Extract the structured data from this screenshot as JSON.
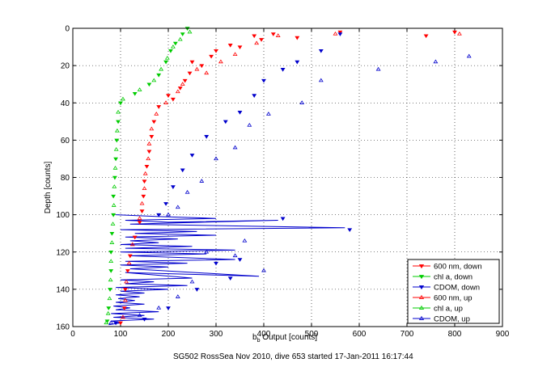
{
  "chart_data": {
    "type": "scatter",
    "title": "",
    "xlabel_main": "b",
    "xlabel_sub": "b",
    "xlabel_rest": " Output [counts]",
    "ylabel": "Depth [counts]",
    "caption": "SG502 RossSea Nov 2010, dive 653 started 17-Jan-2011 16:17:44",
    "xlim": [
      0,
      900
    ],
    "ylim": [
      0,
      160
    ],
    "y_reversed": true,
    "grid": true,
    "grid_style": "dotted",
    "legend_position": "lower-right",
    "xticks": [
      "0",
      "100",
      "200",
      "300",
      "400",
      "500",
      "600",
      "700",
      "800",
      "900"
    ],
    "yticks": [
      "0",
      "20",
      "40",
      "60",
      "80",
      "100",
      "120",
      "140",
      "160"
    ],
    "colors": {
      "red": "#ff0000",
      "green": "#00cc00",
      "blue": "#0000cc"
    },
    "series": [
      {
        "name": "600 nm, down",
        "color": "#ff0000",
        "marker": "triangle-down",
        "filled": true,
        "points": [
          [
            800,
            2
          ],
          [
            740,
            4
          ],
          [
            560,
            2
          ],
          [
            470,
            5
          ],
          [
            420,
            3
          ],
          [
            395,
            6
          ],
          [
            380,
            4
          ],
          [
            350,
            10
          ],
          [
            330,
            9
          ],
          [
            300,
            12
          ],
          [
            290,
            15
          ],
          [
            270,
            20
          ],
          [
            250,
            18
          ],
          [
            245,
            24
          ],
          [
            235,
            28
          ],
          [
            225,
            32
          ],
          [
            210,
            38
          ],
          [
            200,
            36
          ],
          [
            180,
            42
          ],
          [
            170,
            50
          ],
          [
            165,
            58
          ],
          [
            160,
            66
          ],
          [
            155,
            74
          ],
          [
            150,
            82
          ],
          [
            148,
            90
          ],
          [
            145,
            98
          ],
          [
            140,
            104
          ],
          [
            130,
            112
          ],
          [
            120,
            122
          ],
          [
            115,
            130
          ],
          [
            110,
            140
          ],
          [
            108,
            150
          ],
          [
            100,
            158
          ]
        ]
      },
      {
        "name": "chl a, down",
        "color": "#00cc00",
        "marker": "triangle-down",
        "filled": true,
        "points": [
          [
            240,
            0
          ],
          [
            230,
            3
          ],
          [
            215,
            8
          ],
          [
            205,
            12
          ],
          [
            195,
            18
          ],
          [
            180,
            25
          ],
          [
            160,
            30
          ],
          [
            130,
            35
          ],
          [
            100,
            40
          ],
          [
            95,
            50
          ],
          [
            92,
            60
          ],
          [
            90,
            70
          ],
          [
            88,
            80
          ],
          [
            85,
            90
          ],
          [
            85,
            100
          ],
          [
            82,
            110
          ],
          [
            80,
            120
          ],
          [
            80,
            130
          ],
          [
            78,
            140
          ],
          [
            75,
            150
          ],
          [
            72,
            157
          ]
        ]
      },
      {
        "name": "CDOM, down",
        "color": "#0000cc",
        "marker": "triangle-down",
        "filled": true,
        "points": [
          [
            560,
            3
          ],
          [
            520,
            12
          ],
          [
            470,
            18
          ],
          [
            440,
            22
          ],
          [
            400,
            28
          ],
          [
            380,
            36
          ],
          [
            350,
            45
          ],
          [
            320,
            50
          ],
          [
            280,
            58
          ],
          [
            250,
            68
          ],
          [
            230,
            76
          ],
          [
            210,
            85
          ],
          [
            195,
            94
          ],
          [
            180,
            100
          ],
          [
            580,
            108
          ],
          [
            440,
            102
          ],
          [
            350,
            124
          ],
          [
            330,
            134
          ],
          [
            300,
            126
          ],
          [
            260,
            140
          ],
          [
            200,
            150
          ],
          [
            150,
            156
          ],
          [
            90,
            158
          ]
        ]
      },
      {
        "name": "600 nm, up",
        "color": "#ff0000",
        "marker": "triangle-up",
        "filled": false,
        "points": [
          [
            810,
            3
          ],
          [
            550,
            3
          ],
          [
            430,
            4
          ],
          [
            385,
            8
          ],
          [
            340,
            14
          ],
          [
            310,
            18
          ],
          [
            280,
            24
          ],
          [
            260,
            22
          ],
          [
            230,
            30
          ],
          [
            220,
            34
          ],
          [
            195,
            40
          ],
          [
            175,
            46
          ],
          [
            165,
            54
          ],
          [
            160,
            62
          ],
          [
            158,
            70
          ],
          [
            152,
            78
          ],
          [
            150,
            86
          ],
          [
            145,
            94
          ],
          [
            140,
            102
          ],
          [
            125,
            116
          ],
          [
            118,
            126
          ],
          [
            112,
            136
          ],
          [
            110,
            146
          ],
          [
            105,
            155
          ]
        ]
      },
      {
        "name": "chl a, up",
        "color": "#00cc00",
        "marker": "triangle-up",
        "filled": false,
        "points": [
          [
            245,
            2
          ],
          [
            225,
            6
          ],
          [
            210,
            10
          ],
          [
            198,
            16
          ],
          [
            185,
            22
          ],
          [
            170,
            28
          ],
          [
            140,
            33
          ],
          [
            105,
            38
          ],
          [
            95,
            45
          ],
          [
            93,
            55
          ],
          [
            91,
            65
          ],
          [
            89,
            75
          ],
          [
            87,
            85
          ],
          [
            86,
            95
          ],
          [
            84,
            105
          ],
          [
            82,
            115
          ],
          [
            80,
            125
          ],
          [
            79,
            135
          ],
          [
            77,
            145
          ],
          [
            74,
            153
          ],
          [
            70,
            158
          ]
        ]
      },
      {
        "name": "CDOM, up",
        "color": "#0000cc",
        "marker": "triangle-up",
        "filled": false,
        "points": [
          [
            830,
            15
          ],
          [
            760,
            18
          ],
          [
            640,
            22
          ],
          [
            520,
            28
          ],
          [
            480,
            40
          ],
          [
            410,
            46
          ],
          [
            370,
            52
          ],
          [
            340,
            64
          ],
          [
            300,
            70
          ],
          [
            270,
            82
          ],
          [
            240,
            88
          ],
          [
            220,
            96
          ],
          [
            200,
            100
          ],
          [
            360,
            114
          ],
          [
            340,
            122
          ],
          [
            400,
            130
          ],
          [
            280,
            120
          ],
          [
            250,
            136
          ],
          [
            220,
            144
          ],
          [
            180,
            150
          ],
          [
            140,
            154
          ],
          [
            80,
            158
          ]
        ]
      }
    ],
    "up_trace": [
      [
        90,
        100
      ],
      [
        180,
        101
      ],
      [
        300,
        102
      ],
      [
        110,
        103
      ],
      [
        200,
        104
      ],
      [
        430,
        103
      ],
      [
        120,
        105
      ],
      [
        570,
        107
      ],
      [
        100,
        108
      ],
      [
        260,
        109
      ],
      [
        130,
        110
      ],
      [
        300,
        111
      ],
      [
        110,
        112
      ],
      [
        220,
        113
      ],
      [
        120,
        114
      ],
      [
        180,
        115
      ],
      [
        100,
        116
      ],
      [
        250,
        117
      ],
      [
        110,
        118
      ],
      [
        340,
        119
      ],
      [
        100,
        120
      ],
      [
        280,
        121
      ],
      [
        120,
        122
      ],
      [
        340,
        124
      ],
      [
        110,
        125
      ],
      [
        240,
        126
      ],
      [
        100,
        127
      ],
      [
        200,
        128
      ],
      [
        120,
        129
      ],
      [
        390,
        133
      ],
      [
        110,
        131
      ],
      [
        250,
        134
      ],
      [
        100,
        135
      ],
      [
        170,
        136
      ],
      [
        110,
        137
      ],
      [
        240,
        138
      ],
      [
        90,
        139
      ],
      [
        200,
        140
      ],
      [
        100,
        141
      ],
      [
        150,
        142
      ],
      [
        90,
        143
      ],
      [
        140,
        144
      ],
      [
        95,
        145
      ],
      [
        130,
        146
      ],
      [
        90,
        147
      ],
      [
        150,
        148
      ],
      [
        85,
        149
      ],
      [
        120,
        150
      ],
      [
        90,
        151
      ],
      [
        180,
        152
      ],
      [
        80,
        153
      ],
      [
        150,
        154
      ],
      [
        85,
        155
      ],
      [
        170,
        156
      ],
      [
        80,
        157
      ],
      [
        100,
        158
      ],
      [
        75,
        159
      ]
    ]
  }
}
